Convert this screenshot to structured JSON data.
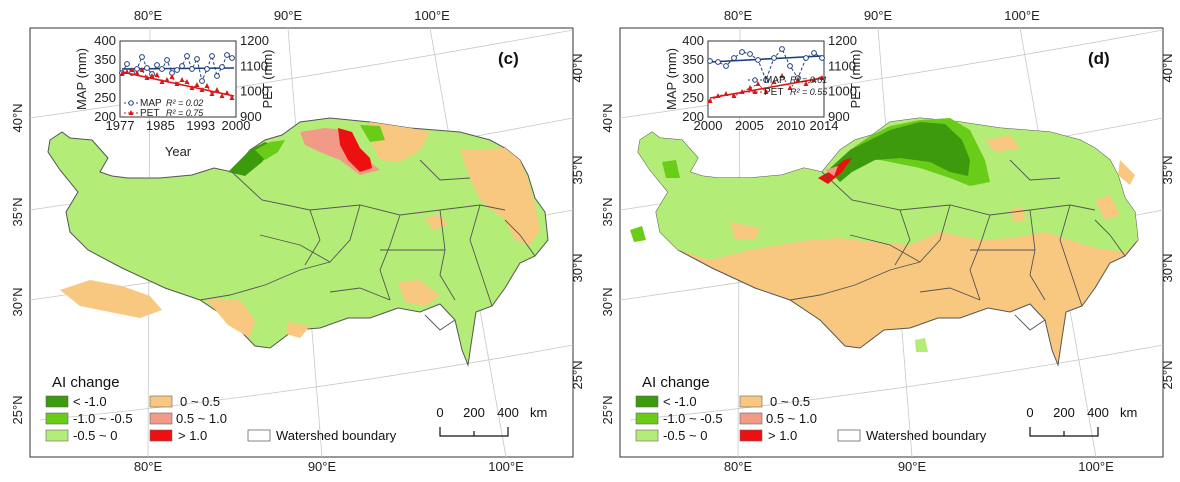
{
  "colors": {
    "lt_m1": "#3c9a0c",
    "m1_m05": "#68cc18",
    "m05_0": "#b4ec78",
    "z_05": "#f8c880",
    "p05_1": "#f29a88",
    "gt1": "#ee1010",
    "boundary": "#555555",
    "map_line": "#1f3f7c",
    "pet_line": "#d81818"
  },
  "grid": {
    "top_lon": [
      "80°E",
      "90°E",
      "100°E"
    ],
    "bottom_lon": [
      "80°E",
      "90°E",
      "100°E"
    ],
    "left_lat": [
      "40°N",
      "35°N",
      "30°N",
      "25°N"
    ],
    "right_lat": [
      "40°N",
      "35°N",
      "30°N",
      "25°N"
    ]
  },
  "panels": [
    {
      "id": "c",
      "label": "(c)",
      "inset": {
        "x_ticks": [
          "1977",
          "1985",
          "1993",
          "2000"
        ],
        "x_range": [
          1977,
          2000
        ],
        "xlabel": "Year",
        "left_ylabel": "MAP (mm)",
        "left_ticks": [
          "400",
          "350",
          "300",
          "250",
          "200"
        ],
        "left_range": [
          200,
          400
        ],
        "right_ylabel": "PET (mm)",
        "right_ticks": [
          "1200",
          "1100",
          "1000",
          "900"
        ],
        "right_range": [
          900,
          1200
        ],
        "legend_map": "MAP",
        "legend_pet": "PET",
        "r2_map": "R² = 0.02",
        "r2_pet": "R² = 0.75"
      }
    },
    {
      "id": "d",
      "label": "(d)",
      "inset": {
        "x_ticks": [
          "2000",
          "2005",
          "2010",
          "2014"
        ],
        "x_range": [
          2000,
          2014
        ],
        "xlabel": "Year",
        "left_ylabel": "MAP (mm)",
        "left_ticks": [
          "400",
          "350",
          "300",
          "250",
          "200"
        ],
        "left_range": [
          200,
          400
        ],
        "right_ylabel": "PET (mm)",
        "right_ticks": [
          "1200",
          "1100",
          "1000",
          "900"
        ],
        "right_range": [
          900,
          1200
        ],
        "legend_map": "MAP",
        "legend_pet": "PET",
        "r2_map": "R² = 0.01",
        "r2_pet": "R² = 0.55"
      }
    }
  ],
  "legend": {
    "title": "AI change",
    "items": [
      {
        "label": "< -1.0",
        "color": "#3c9a0c"
      },
      {
        "label": "-1.0 ~ -0.5",
        "color": "#68cc18"
      },
      {
        "label": "-0.5 ~ 0",
        "color": "#b4ec78"
      },
      {
        "label": "0 ~ 0.5",
        "color": "#f8c880"
      },
      {
        "label": "0.5 ~ 1.0",
        "color": "#f29a88"
      },
      {
        "label": "> 1.0",
        "color": "#ee1010"
      }
    ],
    "watershed": "Watershed boundary"
  },
  "scalebar": {
    "labels": [
      "0",
      "200",
      "400",
      "km"
    ]
  }
}
